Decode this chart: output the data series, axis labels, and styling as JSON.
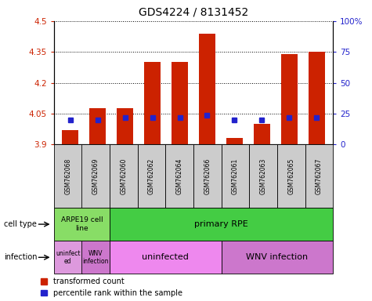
{
  "title": "GDS4224 / 8131452",
  "samples": [
    "GSM762068",
    "GSM762069",
    "GSM762060",
    "GSM762062",
    "GSM762064",
    "GSM762066",
    "GSM762061",
    "GSM762063",
    "GSM762065",
    "GSM762067"
  ],
  "transformed_counts": [
    3.97,
    4.075,
    4.075,
    4.3,
    4.3,
    4.44,
    3.93,
    4.0,
    4.34,
    4.35
  ],
  "percentile_ranks": [
    20,
    20,
    22,
    22,
    22,
    24,
    20,
    20,
    22,
    22
  ],
  "y_min": 3.9,
  "y_max": 4.5,
  "y_ticks": [
    3.9,
    4.05,
    4.2,
    4.35,
    4.5
  ],
  "y_tick_labels": [
    "3.9",
    "4.05",
    "4.2",
    "4.35",
    "4.5"
  ],
  "right_y_ticks": [
    0,
    25,
    50,
    75,
    100
  ],
  "right_y_labels": [
    "0",
    "25",
    "50",
    "75",
    "100%"
  ],
  "bar_color": "#cc2200",
  "percentile_color": "#2222cc",
  "arpe19_color": "#88dd66",
  "primary_color": "#44cc44",
  "uninf_arpe_color": "#dd99dd",
  "wnv_arpe_color": "#cc77cc",
  "uninf_color": "#ee88ee",
  "wnv_color": "#cc77cc",
  "sample_box_color": "#cccccc",
  "legend_items": [
    "transformed count",
    "percentile rank within the sample"
  ],
  "row_label_cell": "cell type",
  "row_label_inf": "infection",
  "arpe19_label": "ARPE19 cell\nline",
  "primary_label": "primary RPE",
  "uninf_arpe_label": "uninfect\ned",
  "wnv_arpe_label": "WNV\ninfection",
  "uninf_label": "uninfected",
  "wnv_label": "WNV infection",
  "background_color": "#ffffff",
  "tick_color_left": "#cc2200",
  "tick_color_right": "#2222cc"
}
